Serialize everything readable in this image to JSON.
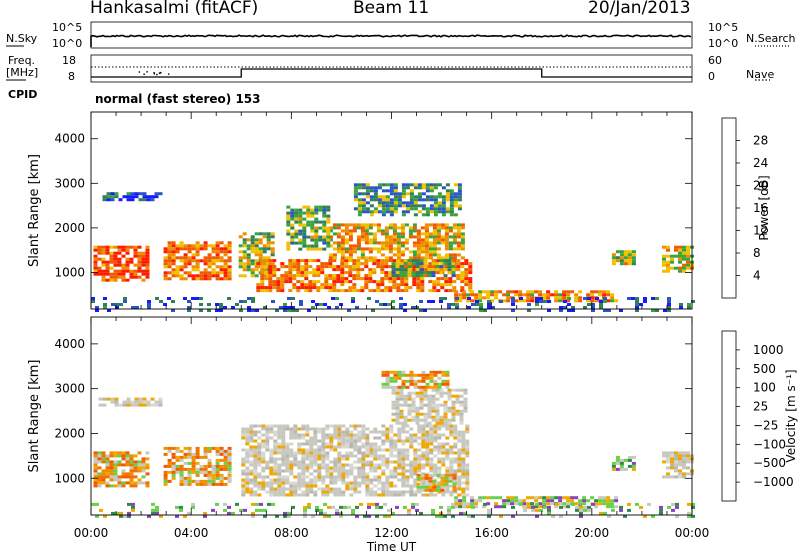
{
  "header": {
    "station": "Hankasalmi (fitACF)",
    "beam": "Beam 11",
    "date": "20/Jan/2013"
  },
  "top_panels": {
    "nsky_label": "N.Sky",
    "nsearch_label": "N.Search",
    "noise_ticks": [
      "10^5",
      "10^0"
    ],
    "freq_label_line1": "Freq.",
    "freq_label_line2": "[MHz]",
    "freq_ticks": [
      "18",
      "8"
    ],
    "nave_label": "Nave",
    "nave_ticks": [
      "60",
      "0"
    ],
    "cpid_label": "CPID",
    "cpid_text": "normal (fast stereo) 153"
  },
  "chart_data": [
    {
      "type": "heatmap",
      "title": "Power",
      "xlabel": "Time UT",
      "ylabel": "Slant Range [km]",
      "xlim": [
        "00:00",
        "24:00"
      ],
      "x_ticks": [
        "00:00",
        "04:00",
        "08:00",
        "12:00",
        "16:00",
        "20:00",
        "00:00"
      ],
      "ylim": [
        180,
        4600
      ],
      "y_ticks": [
        1000,
        2000,
        3000,
        4000
      ],
      "colorbar": {
        "label": "Power [dB]",
        "ticks": [
          "4",
          "8",
          "12",
          "16",
          "20",
          "24",
          "28"
        ],
        "range": [
          0,
          32
        ],
        "colors": [
          "#1a1aff",
          "#2a55c8",
          "#2e7f5a",
          "#3aa33a",
          "#f0c000",
          "#f08c00",
          "#f05a00",
          "#ff1a00"
        ]
      },
      "echo_regions": [
        {
          "t_start": 0.3,
          "t_end": 2.7,
          "r_low": 2600,
          "r_high": 2800,
          "level": 7
        },
        {
          "t_start": 0.1,
          "t_end": 2.3,
          "r_low": 800,
          "r_high": 1600,
          "level": 26
        },
        {
          "t_start": 2.9,
          "t_end": 5.6,
          "r_low": 850,
          "r_high": 1700,
          "level": 25
        },
        {
          "t_start": 5.9,
          "t_end": 7.2,
          "r_low": 900,
          "r_high": 1900,
          "level": 17
        },
        {
          "t_start": 6.6,
          "t_end": 15.2,
          "r_low": 600,
          "r_high": 1300,
          "level": 24
        },
        {
          "t_start": 9.5,
          "t_end": 14.8,
          "r_low": 1300,
          "r_high": 2100,
          "level": 20
        },
        {
          "t_start": 10.5,
          "t_end": 14.8,
          "r_low": 2300,
          "r_high": 3000,
          "level": 11
        },
        {
          "t_start": 7.8,
          "t_end": 9.5,
          "r_low": 1500,
          "r_high": 2500,
          "level": 14
        },
        {
          "t_start": 12.0,
          "t_end": 14.5,
          "r_low": 900,
          "r_high": 1300,
          "level": 14
        },
        {
          "t_start": 14.5,
          "t_end": 21.0,
          "r_low": 380,
          "r_high": 600,
          "level": 22
        },
        {
          "t_start": 20.8,
          "t_end": 21.6,
          "r_low": 1200,
          "r_high": 1500,
          "level": 18
        },
        {
          "t_start": 22.8,
          "t_end": 24.0,
          "r_low": 1000,
          "r_high": 1600,
          "level": 19
        },
        {
          "t_start": 0.0,
          "t_end": 24.0,
          "r_low": 180,
          "r_high": 450,
          "level": 6
        }
      ]
    },
    {
      "type": "heatmap",
      "title": "Velocity",
      "xlabel": "Time UT",
      "ylabel": "Slant Range [km]",
      "xlim": [
        "00:00",
        "24:00"
      ],
      "x_ticks": [
        "00:00",
        "04:00",
        "08:00",
        "12:00",
        "16:00",
        "20:00",
        "00:00"
      ],
      "ylim": [
        180,
        4600
      ],
      "y_ticks": [
        1000,
        2000,
        3000,
        4000
      ],
      "colorbar": {
        "label": "Velocity [m s^-1]",
        "ticks": [
          "1000",
          "500",
          "100",
          "25",
          "−25",
          "−100",
          "−500",
          "−1000"
        ],
        "colors": [
          "#1a2ad8",
          "#2a5c8c",
          "#2f8a4a",
          "#6ad04a",
          "#c8c8c0",
          "#f0a800",
          "#f07000",
          "#f04000",
          "#ff1a00"
        ]
      },
      "echo_regions": [
        {
          "t_start": 0.3,
          "t_end": 2.7,
          "r_low": 2600,
          "r_high": 2800,
          "class": "grey"
        },
        {
          "t_start": 0.1,
          "t_end": 2.3,
          "r_low": 800,
          "r_high": 1600,
          "class": "orange"
        },
        {
          "t_start": 2.9,
          "t_end": 5.6,
          "r_low": 850,
          "r_high": 1700,
          "class": "orange"
        },
        {
          "t_start": 6.0,
          "t_end": 15.0,
          "r_low": 600,
          "r_high": 2200,
          "class": "grey"
        },
        {
          "t_start": 12.0,
          "t_end": 15.0,
          "r_low": 2200,
          "r_high": 3000,
          "class": "grey"
        },
        {
          "t_start": 11.6,
          "t_end": 14.2,
          "r_low": 3000,
          "r_high": 3400,
          "class": "orange"
        },
        {
          "t_start": 13.0,
          "t_end": 14.5,
          "r_low": 700,
          "r_high": 1100,
          "class": "orange"
        },
        {
          "t_start": 14.5,
          "t_end": 21.0,
          "r_low": 380,
          "r_high": 600,
          "class": "green"
        },
        {
          "t_start": 20.8,
          "t_end": 21.6,
          "r_low": 1200,
          "r_high": 1500,
          "class": "green"
        },
        {
          "t_start": 22.8,
          "t_end": 24.0,
          "r_low": 1000,
          "r_high": 1600,
          "class": "grey"
        },
        {
          "t_start": 0.0,
          "t_end": 24.0,
          "r_low": 180,
          "r_high": 450,
          "class": "green"
        }
      ]
    }
  ]
}
